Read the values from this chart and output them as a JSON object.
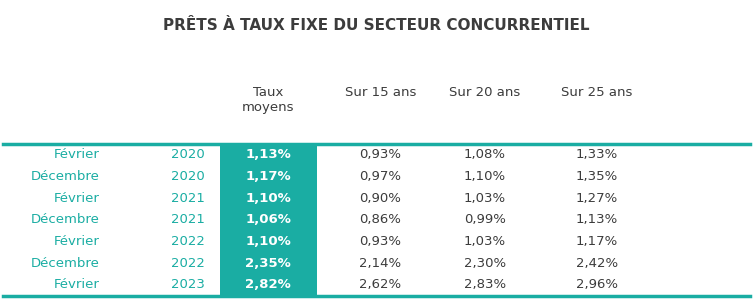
{
  "title": "PRÊTS À TAUX FIXE DU SECTEUR CONCURRENTIEL",
  "col_headers": [
    "",
    "",
    "Taux\nmoyens",
    "Sur 15 ans",
    "Sur 20 ans",
    "Sur 25 ans"
  ],
  "rows": [
    [
      "Février",
      "2020",
      "1,13%",
      "0,93%",
      "1,08%",
      "1,33%"
    ],
    [
      "Décembre",
      "2020",
      "1,17%",
      "0,97%",
      "1,10%",
      "1,35%"
    ],
    [
      "Février",
      "2021",
      "1,10%",
      "0,90%",
      "1,03%",
      "1,27%"
    ],
    [
      "Décembre",
      "2021",
      "1,06%",
      "0,86%",
      "0,99%",
      "1,13%"
    ],
    [
      "Février",
      "2022",
      "1,10%",
      "0,93%",
      "1,03%",
      "1,17%"
    ],
    [
      "Décembre",
      "2022",
      "2,35%",
      "2,14%",
      "2,30%",
      "2,42%"
    ],
    [
      "Février",
      "2023",
      "2,82%",
      "2,62%",
      "2,83%",
      "2,96%"
    ]
  ],
  "teal_color": "#1AADA3",
  "text_dark": "#3C3C3C",
  "text_teal": "#1AADA3",
  "background": "#FFFFFF",
  "title_fontsize": 11,
  "header_fontsize": 9.5,
  "cell_fontsize": 9.5
}
